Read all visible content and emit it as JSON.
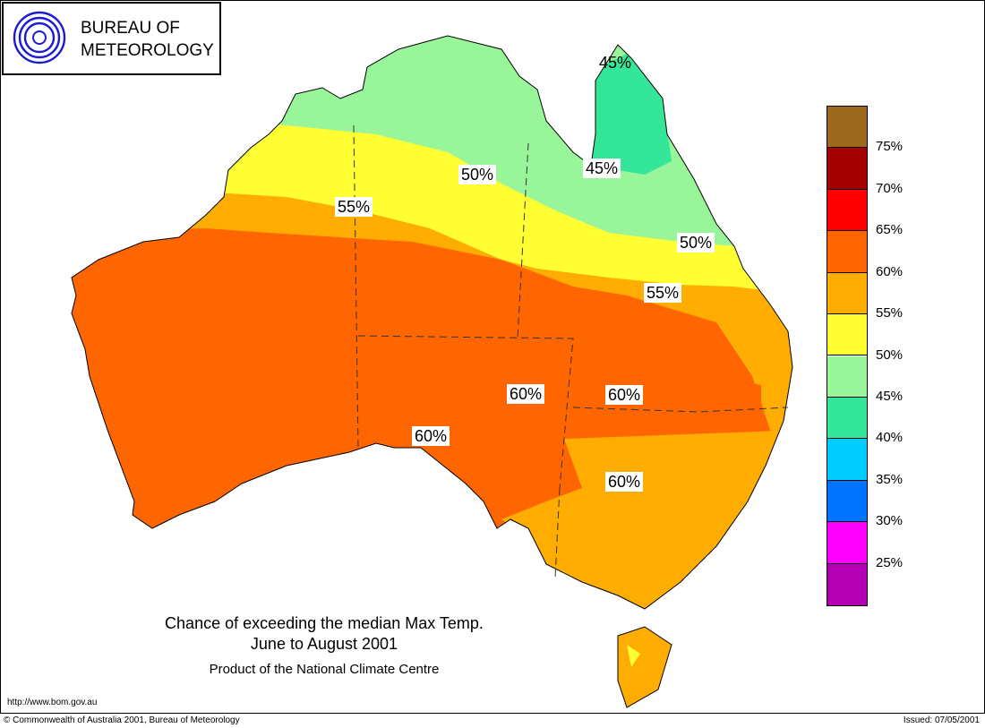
{
  "header": {
    "agency_line1": "BUREAU OF",
    "agency_line2": "METEOROLOGY",
    "logo": "bom-swirl-logo"
  },
  "title": {
    "line1": "Chance of exceeding the median Max Temp.",
    "line2": "June to August 2001",
    "product": "Product of the National Climate Centre"
  },
  "legend": {
    "colors": [
      "#9b6a1e",
      "#a50000",
      "#ff0000",
      "#ff6600",
      "#ffad00",
      "#ffff33",
      "#99f599",
      "#33e699",
      "#00ccff",
      "#0073ff",
      "#ff00ff",
      "#b300b3"
    ],
    "labels": [
      "75%",
      "70%",
      "65%",
      "60%",
      "55%",
      "50%",
      "45%",
      "40%",
      "35%",
      "30%",
      "25%"
    ]
  },
  "contour_labels": [
    "45%",
    "50%",
    "45%",
    "55%",
    "50%",
    "55%",
    "60%",
    "60%",
    "60%",
    "60%"
  ],
  "footer": {
    "url": "http://www.bom.gov.au",
    "copyright": "© Commonwealth of Australia 2001, Bureau of Meteorology",
    "issued": "Issued: 07/05/2001"
  }
}
